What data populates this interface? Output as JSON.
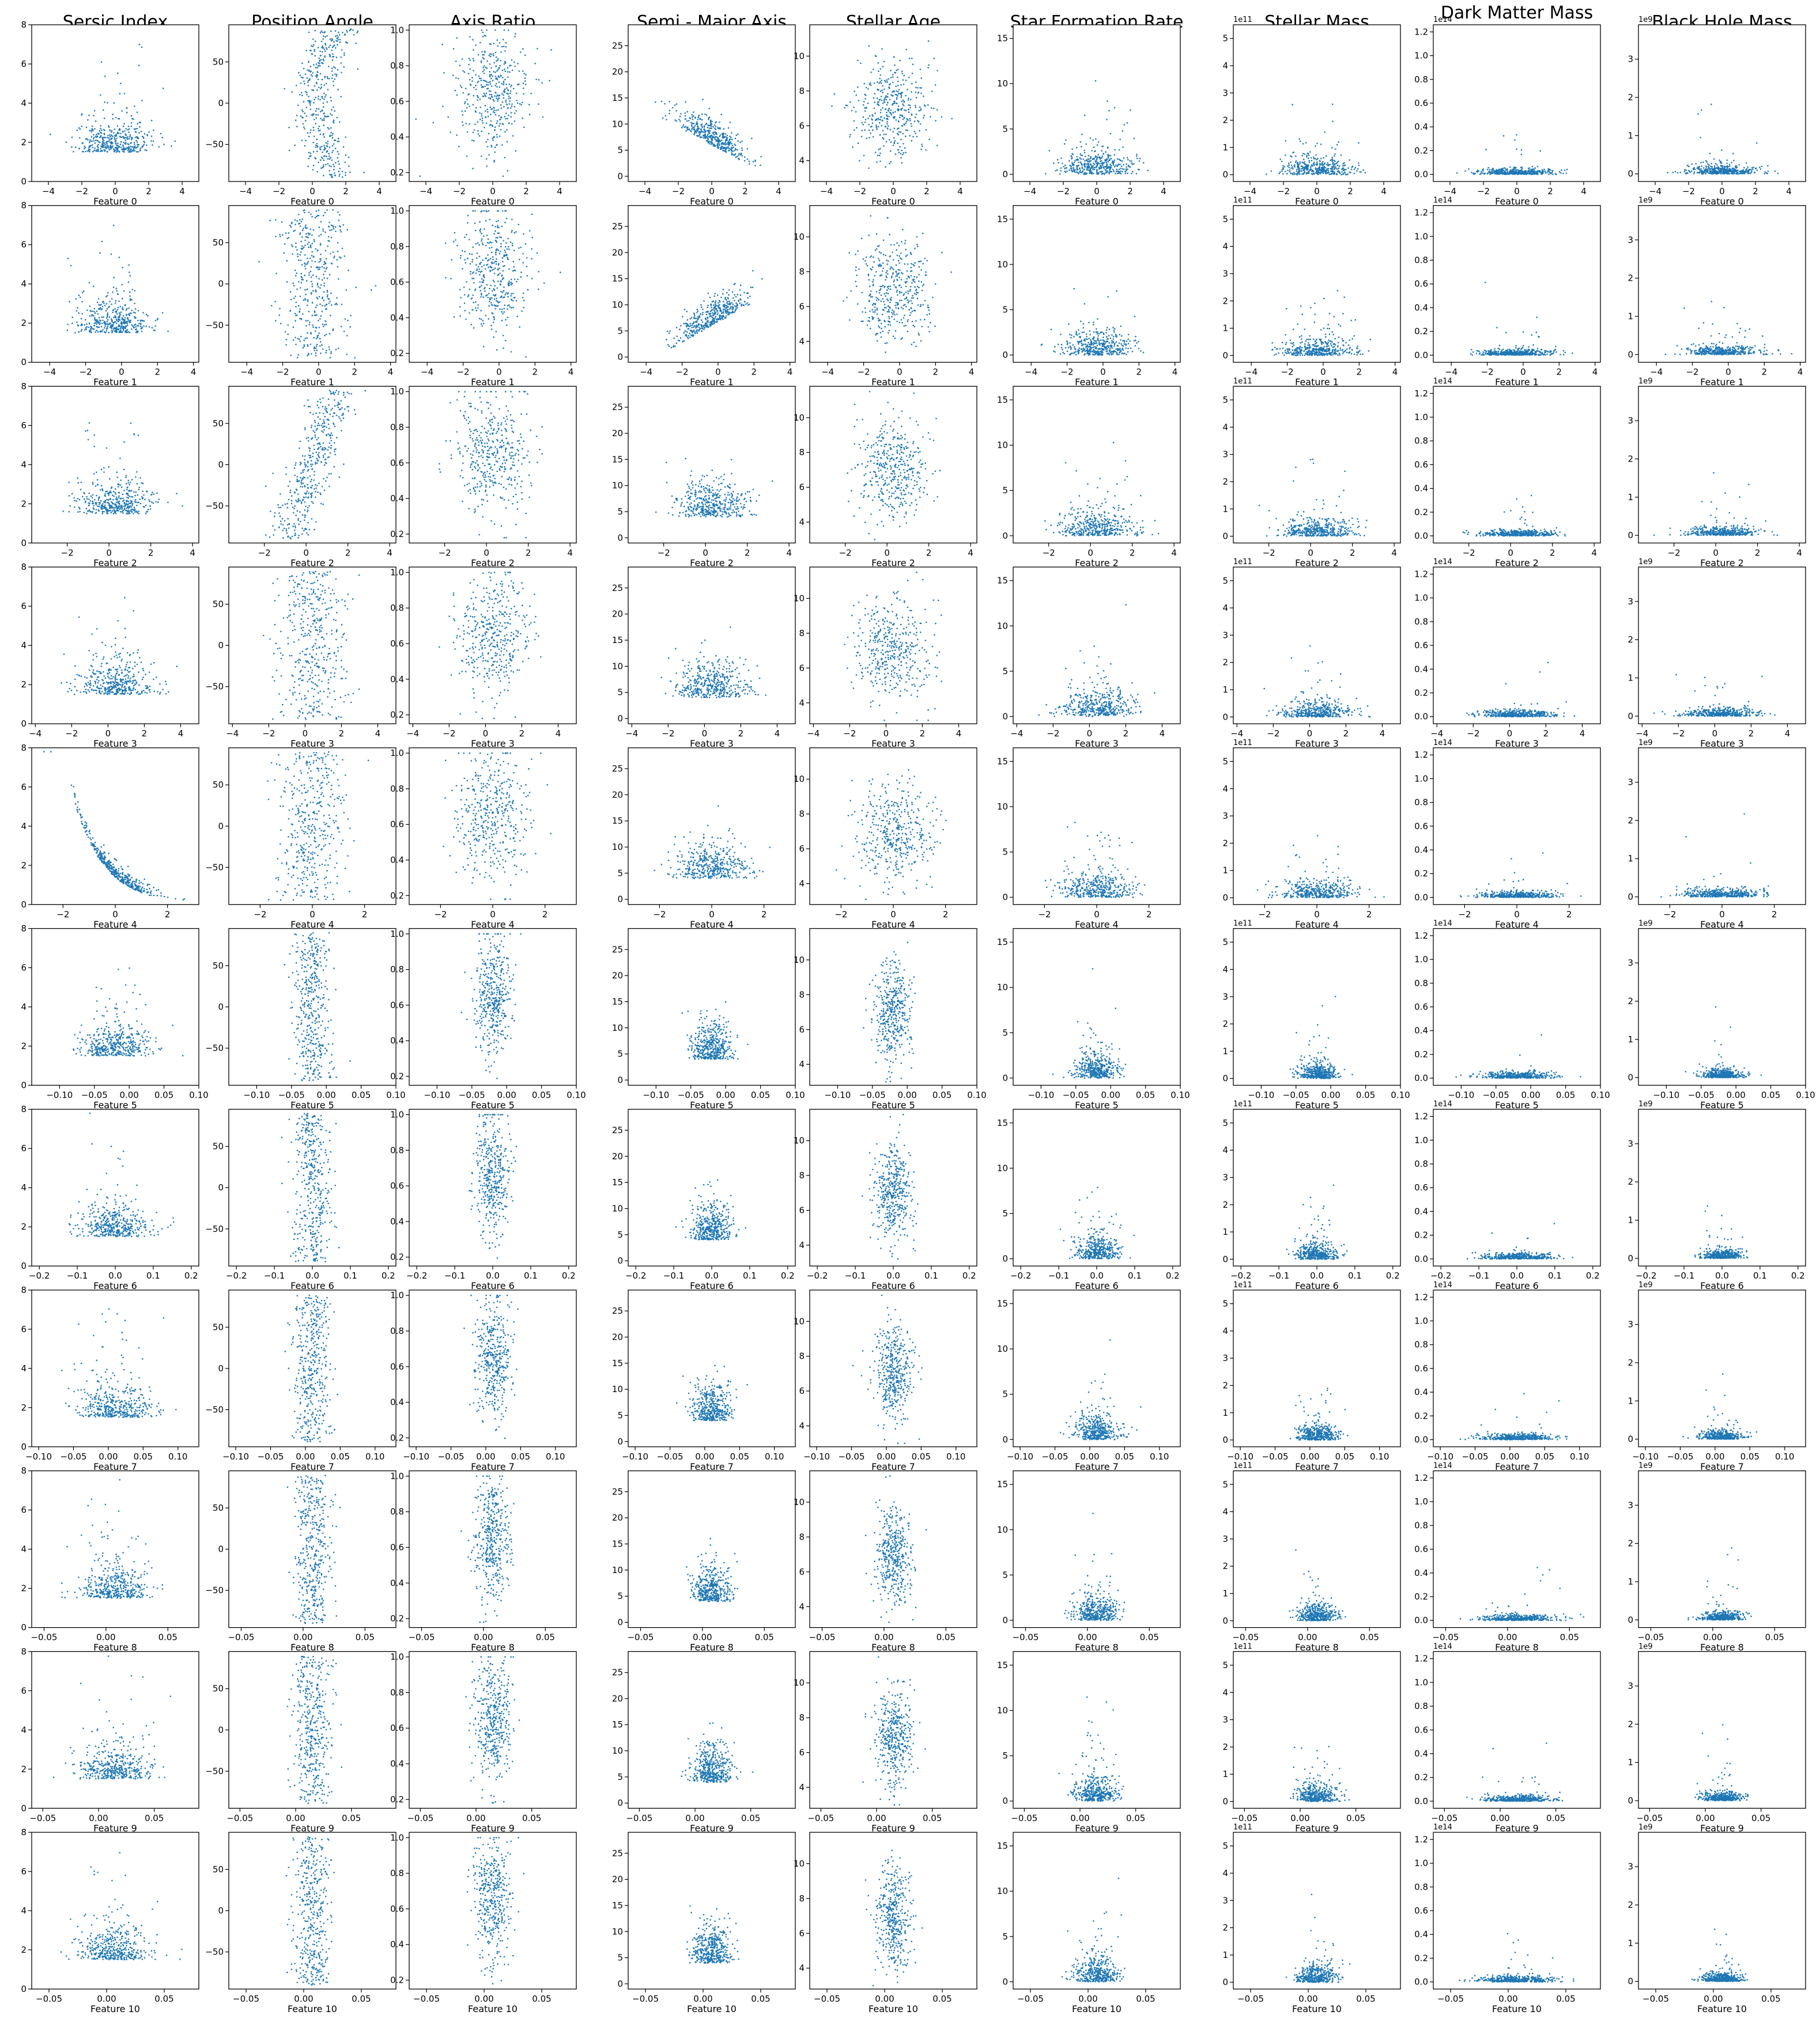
{
  "chart_data": {
    "type": "scatter",
    "layout": "grid",
    "rows": 11,
    "columns": 9,
    "column_titles": [
      "Sersic Index",
      "Position Angle",
      "Axis Ratio",
      "Semi - Major Axis",
      "Stellar Age",
      "Star Formation Rate",
      "Stellar Mass",
      "Dark Matter Mass",
      "Black Hole Mass"
    ],
    "row_xlabels": [
      "Feature 0",
      "Feature 1",
      "Feature 2",
      "Feature 3",
      "Feature 4",
      "Feature 5",
      "Feature 6",
      "Feature 7",
      "Feature 8",
      "Feature 9",
      "Feature 10"
    ],
    "marker_color": "#1f77b4",
    "grid": false,
    "y_axes": [
      {
        "range": [
          0,
          8
        ],
        "ticks": [
          "0",
          "2",
          "4",
          "6",
          "8"
        ],
        "offset_text": ""
      },
      {
        "range": [
          -95,
          95
        ],
        "ticks": [
          "-50",
          "0",
          "50"
        ],
        "offset_text": ""
      },
      {
        "range": [
          0.15,
          1.03
        ],
        "ticks": [
          "0.2",
          "0.4",
          "0.6",
          "0.8",
          "1.0"
        ],
        "offset_text": ""
      },
      {
        "range": [
          -1,
          29
        ],
        "ticks": [
          "0",
          "5",
          "10",
          "15",
          "20",
          "25"
        ],
        "offset_text": ""
      },
      {
        "range": [
          2.8,
          11.8
        ],
        "ticks": [
          "4",
          "6",
          "8",
          "10"
        ],
        "offset_text": ""
      },
      {
        "range": [
          -0.8,
          16.5
        ],
        "ticks": [
          "0",
          "5",
          "10",
          "15"
        ],
        "offset_text": ""
      },
      {
        "range": [
          -0.25,
          5.5
        ],
        "ticks": [
          "0",
          "1",
          "2",
          "3",
          "4",
          "5"
        ],
        "offset_text": "1e11"
      },
      {
        "range": [
          -0.06,
          1.26
        ],
        "ticks": [
          "0.0",
          "0.2",
          "0.4",
          "0.6",
          "0.8",
          "1.0",
          "1.2"
        ],
        "offset_text": "1e14"
      },
      {
        "range": [
          -0.2,
          3.9
        ],
        "ticks": [
          "0",
          "1",
          "2",
          "3"
        ],
        "offset_text": "1e9"
      }
    ],
    "x_axes": [
      {
        "range": [
          -5,
          5
        ],
        "ticks": [
          "-4",
          "-2",
          "0",
          "2",
          "4"
        ]
      },
      {
        "range": [
          -5,
          4.3
        ],
        "ticks": [
          "-4",
          "-2",
          "0",
          "2",
          "4"
        ]
      },
      {
        "range": [
          -3.7,
          4.3
        ],
        "ticks": [
          "-2",
          "0",
          "2",
          "4"
        ]
      },
      {
        "range": [
          -4.2,
          5
        ],
        "ticks": [
          "-4",
          "-2",
          "0",
          "2",
          "4"
        ]
      },
      {
        "range": [
          -3.2,
          3.2
        ],
        "ticks": [
          "-2",
          "0",
          "2"
        ]
      },
      {
        "range": [
          -0.14,
          0.1
        ],
        "ticks": [
          "-0.10",
          "-0.05",
          "0.00",
          "0.05",
          "0.10"
        ]
      },
      {
        "range": [
          -0.22,
          0.22
        ],
        "ticks": [
          "-0.2",
          "-0.1",
          "0.0",
          "0.1",
          "0.2"
        ]
      },
      {
        "range": [
          -0.11,
          0.13
        ],
        "ticks": [
          "-0.10",
          "-0.05",
          "0.00",
          "0.05",
          "0.10"
        ]
      },
      {
        "range": [
          -0.06,
          0.075
        ],
        "ticks": [
          "-0.05",
          "0.00",
          "0.05"
        ]
      },
      {
        "range": [
          -0.06,
          0.09
        ],
        "ticks": [
          "-0.05",
          "0.00",
          "0.05"
        ]
      },
      {
        "range": [
          -0.065,
          0.08
        ],
        "ticks": [
          "-0.05",
          "0.00",
          "0.05"
        ]
      }
    ]
  }
}
